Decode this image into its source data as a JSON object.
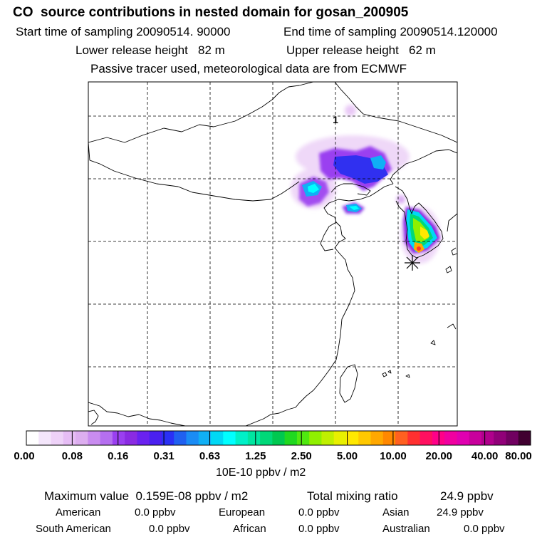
{
  "header": {
    "title": "CO  source contributions in nested domain for gosan_200905",
    "start_label": "Start time of sampling 20090514. 90000",
    "end_label": "End time of sampling 20090514.120000",
    "lower_label": "Lower release height   82 m",
    "upper_label": "Upper release height   62 m",
    "tracer_note": "Passive tracer used, meteorological data are from ECMWF"
  },
  "colorbar": {
    "colors": [
      "#ffffff",
      "#f4e6fb",
      "#eed2f8",
      "#e6bdf5",
      "#ddaef0",
      "#c98cf0",
      "#b56ff0",
      "#9a3ff0",
      "#8a2be2",
      "#6a22f0",
      "#4a20f0",
      "#2a30f5",
      "#2060f0",
      "#1a8cf5",
      "#10b0f5",
      "#00d8f5",
      "#00ffff",
      "#00f0c8",
      "#00e6a0",
      "#00d878",
      "#00c850",
      "#20d820",
      "#50e810",
      "#90f000",
      "#c0f000",
      "#e8f000",
      "#ffe800",
      "#ffc800",
      "#ffa800",
      "#ff8800",
      "#ff6020",
      "#ff3030",
      "#ff1060",
      "#ff0088",
      "#f000a0",
      "#e000b0",
      "#c8009c",
      "#b0008c",
      "#900078",
      "#700060",
      "#400030"
    ],
    "tick_labels": [
      "0.00",
      "0.08",
      "0.16",
      "0.31",
      "0.63",
      "1.25",
      "2.50",
      "5.00",
      "10.00",
      "20.00",
      "40.00",
      "80.00"
    ],
    "units": "10E-10 ppbv / m2"
  },
  "map": {
    "marker_label": "1"
  },
  "stats": {
    "max_label": "Maximum value  0.159E-08 ppbv / m2",
    "total_label": "Total mixing ratio",
    "total_value": "24.9 ppbv",
    "regions": [
      {
        "name": "American",
        "value": "0.0 ppbv"
      },
      {
        "name": "European",
        "value": "0.0 ppbv"
      },
      {
        "name": "Asian",
        "value": "24.9 ppbv"
      },
      {
        "name": "South American",
        "value": "0.0 ppbv"
      },
      {
        "name": "African",
        "value": "0.0 ppbv"
      },
      {
        "name": "Australian",
        "value": "0.0 ppbv"
      }
    ]
  }
}
